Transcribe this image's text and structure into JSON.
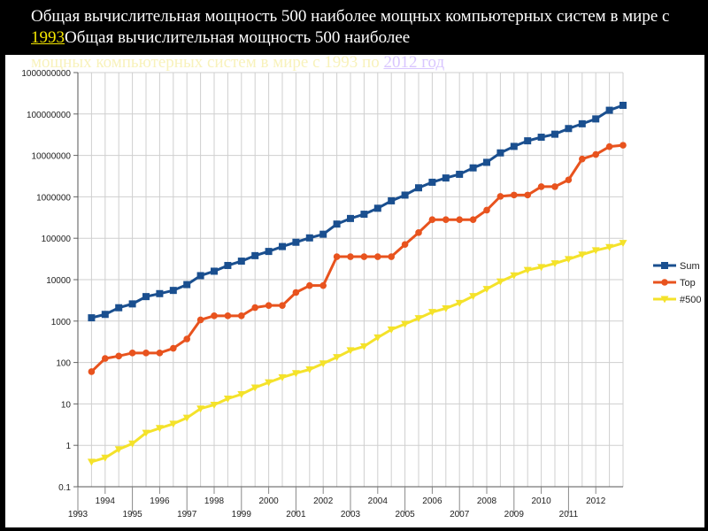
{
  "title": {
    "text_before_link": "Общая вычислительная мощность 500 наиболее мощных компьютерных систем в мире с ",
    "link_1993": "1993",
    "text_after_link": "Общая вычислительная мощность 500 наиболее",
    "tail_text": "мощных компьютерных систем в мире с 1993 по ",
    "link_2012": "2012 год"
  },
  "colors": {
    "sum": "#1a4f8f",
    "top": "#e8531e",
    "n500": "#f4e22a",
    "grid": "#cfcfcf"
  },
  "chart_data": {
    "type": "line",
    "yscale": "log",
    "ylim": [
      0.1,
      1000000000
    ],
    "y_ticks": [
      "0.1",
      "1",
      "10",
      "100",
      "1000",
      "10000",
      "100000",
      "1000000",
      "10000000",
      "100000000",
      "1000000000"
    ],
    "x_tick_labels_lower": [
      "1993",
      "1995",
      "1997",
      "1999",
      "2001",
      "2003",
      "2005",
      "2007",
      "2009",
      "2011"
    ],
    "x_tick_labels_upper": [
      "1994",
      "1996",
      "1998",
      "2000",
      "2002",
      "2004",
      "2006",
      "2008",
      "2010",
      "2012"
    ],
    "x_start": 1993.5,
    "x_step": 0.5,
    "legend": [
      "Sum",
      "Top",
      "#500"
    ],
    "series": [
      {
        "name": "Sum",
        "values": [
          1200,
          1450,
          2100,
          2600,
          3900,
          4600,
          5500,
          7600,
          12500,
          16000,
          22000,
          28000,
          38000,
          48000,
          63000,
          80000,
          102000,
          125000,
          220000,
          300000,
          380000,
          530000,
          800000,
          1100000,
          1650000,
          2250000,
          2850000,
          3500000,
          5000000,
          6800000,
          11500000,
          16500000,
          22500000,
          27500000,
          32500000,
          44500000,
          58000000,
          76000000,
          123000000,
          162000000
        ]
      },
      {
        "name": "Top",
        "values": [
          60,
          125,
          143,
          170,
          170,
          170,
          220,
          370,
          1070,
          1340,
          1340,
          1340,
          2120,
          2380,
          2380,
          4900,
          7200,
          7200,
          35900,
          35900,
          35900,
          35900,
          35900,
          70700,
          136800,
          280600,
          280600,
          280600,
          280600,
          478000,
          1026000,
          1105000,
          1105000,
          1759000,
          1759000,
          2566000,
          8162000,
          10510000,
          16320000,
          17590000
        ]
      },
      {
        "name": "#500",
        "values": [
          0.4,
          0.5,
          0.8,
          1.1,
          2.0,
          2.6,
          3.3,
          4.6,
          7.7,
          9.5,
          13.4,
          17.1,
          24.7,
          33.0,
          43.8,
          55.1,
          67.8,
          94.3,
          134.2,
          196.0,
          245.0,
          400.0,
          624.0,
          850.0,
          1170.0,
          1645.0,
          2026.0,
          2736.0,
          4005.0,
          5931.0,
          9000.0,
          12640.0,
          17090.0,
          20050.0,
          24670.0,
          31120.0,
          40190.0,
          50940.0,
          60820.0,
          76500.0
        ]
      }
    ]
  }
}
